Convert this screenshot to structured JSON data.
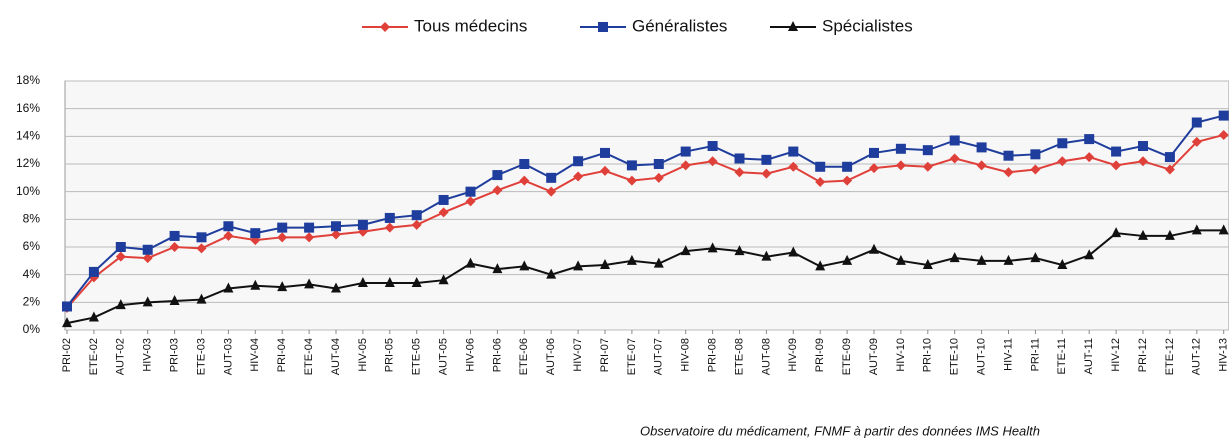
{
  "chart_data": {
    "type": "line",
    "categories": [
      "PRI-02",
      "ETE-02",
      "AUT-02",
      "HIV-03",
      "PRI-03",
      "ETE-03",
      "AUT-03",
      "HIV-04",
      "PRI-04",
      "ETE-04",
      "AUT-04",
      "HIV-05",
      "PRI-05",
      "ETE-05",
      "AUT-05",
      "HIV-06",
      "PRI-06",
      "ETE-06",
      "AUT-06",
      "HIV-07",
      "PRI-07",
      "ETE-07",
      "AUT-07",
      "HIV-08",
      "PRI-08",
      "ETE-08",
      "AUT-08",
      "HIV-09",
      "PRI-09",
      "ETE-09",
      "AUT-09",
      "HIV-10",
      "PRI-10",
      "ETE-10",
      "AUT-10",
      "HIV-11",
      "PRI-11",
      "ETE-11",
      "AUT-11",
      "HIV-12",
      "PRI-12",
      "ETE-12",
      "AUT-12",
      "HIV-13"
    ],
    "series": [
      {
        "name": "Tous médecins",
        "color": "#e0403a",
        "marker": "diamond",
        "values": [
          1.6,
          3.8,
          5.3,
          5.2,
          6.0,
          5.9,
          6.8,
          6.5,
          6.7,
          6.7,
          6.9,
          7.1,
          7.4,
          7.6,
          8.5,
          9.3,
          10.1,
          10.8,
          10.0,
          11.1,
          11.5,
          10.8,
          11.0,
          11.9,
          12.2,
          11.4,
          11.3,
          11.8,
          10.7,
          10.8,
          11.7,
          11.9,
          11.8,
          12.4,
          11.9,
          11.4,
          11.6,
          12.2,
          12.5,
          11.9,
          12.2,
          11.6,
          13.6,
          14.1
        ]
      },
      {
        "name": "Généralistes",
        "color": "#1f3d9c",
        "marker": "square",
        "values": [
          1.7,
          4.2,
          6.0,
          5.8,
          6.8,
          6.7,
          7.5,
          7.0,
          7.4,
          7.4,
          7.5,
          7.6,
          8.1,
          8.3,
          9.4,
          10.0,
          11.2,
          12.0,
          11.0,
          12.2,
          12.8,
          11.9,
          12.0,
          12.9,
          13.3,
          12.4,
          12.3,
          12.9,
          11.8,
          11.8,
          12.8,
          13.1,
          13.0,
          13.7,
          13.2,
          12.6,
          12.7,
          13.5,
          13.8,
          12.9,
          13.3,
          12.5,
          15.0,
          15.5
        ]
      },
      {
        "name": "Spécialistes",
        "color": "#111111",
        "marker": "triangle",
        "values": [
          0.5,
          0.9,
          1.8,
          2.0,
          2.1,
          2.2,
          3.0,
          3.2,
          3.1,
          3.3,
          3.0,
          3.4,
          3.4,
          3.4,
          3.6,
          4.8,
          4.4,
          4.6,
          4.0,
          4.6,
          4.7,
          5.0,
          4.8,
          5.7,
          5.9,
          5.7,
          5.3,
          5.6,
          4.6,
          5.0,
          5.8,
          5.0,
          4.7,
          5.2,
          5.0,
          5.0,
          5.2,
          4.7,
          5.4,
          7.0,
          6.8,
          6.8,
          7.2,
          7.2
        ]
      }
    ],
    "ylim": [
      0,
      18
    ],
    "yticks": [
      {
        "value": 0,
        "label": "0%"
      },
      {
        "value": 2,
        "label": "2%"
      },
      {
        "value": 4,
        "label": "4%"
      },
      {
        "value": 6,
        "label": "6%"
      },
      {
        "value": 8,
        "label": "8%"
      },
      {
        "value": 10,
        "label": "10%"
      },
      {
        "value": 12,
        "label": "12%"
      },
      {
        "value": 14,
        "label": "14%"
      },
      {
        "value": 16,
        "label": "16%"
      },
      {
        "value": 18,
        "label": "18%"
      }
    ],
    "grid": true,
    "legend": "top",
    "source": "Observatoire du médicament, FNMF à partir des données IMS Health"
  }
}
